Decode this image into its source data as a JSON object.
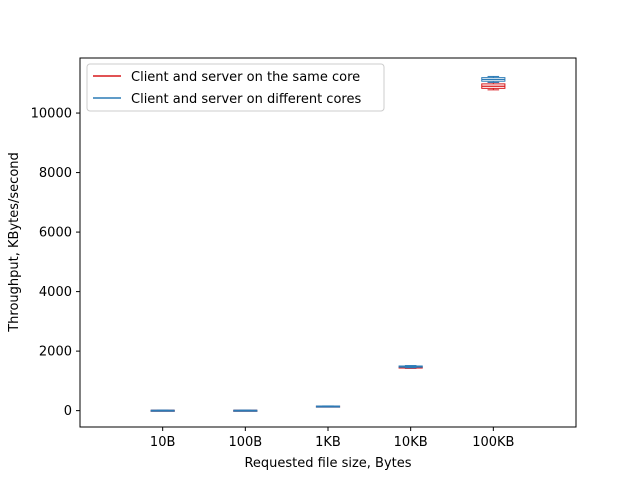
{
  "chart_data": {
    "type": "box",
    "xlabel": "Requested file size, Bytes",
    "ylabel": "Throughput, KBytes/second",
    "categories": [
      "10B",
      "100B",
      "1KB",
      "10KB",
      "100KB"
    ],
    "xlim": [
      -1,
      5
    ],
    "ylim": [
      -550,
      11850
    ],
    "yticks": [
      0,
      2000,
      4000,
      6000,
      8000,
      10000
    ],
    "legend_position": "upper-left",
    "grid": false,
    "series": [
      {
        "name": "Client and server on the same core",
        "color": "#d7191c",
        "boxes": [
          {
            "whislo": 5,
            "q1": 8,
            "med": 10,
            "q3": 12,
            "whishi": 14
          },
          {
            "whislo": 5,
            "q1": 8,
            "med": 10,
            "q3": 12,
            "whishi": 14
          },
          {
            "whislo": 140,
            "q1": 145,
            "med": 148,
            "q3": 151,
            "whishi": 155
          },
          {
            "whislo": 1420,
            "q1": 1435,
            "med": 1450,
            "q3": 1465,
            "whishi": 1480
          },
          {
            "whislo": 10780,
            "q1": 10830,
            "med": 10900,
            "q3": 10980,
            "whishi": 11030
          }
        ]
      },
      {
        "name": "Client and server on different cores",
        "color": "#2c7bb6",
        "boxes": [
          {
            "whislo": 6,
            "q1": 9,
            "med": 11,
            "q3": 13,
            "whishi": 15
          },
          {
            "whislo": 6,
            "q1": 9,
            "med": 11,
            "q3": 13,
            "whishi": 15
          },
          {
            "whislo": 142,
            "q1": 147,
            "med": 150,
            "q3": 153,
            "whishi": 158
          },
          {
            "whislo": 1440,
            "q1": 1460,
            "med": 1480,
            "q3": 1500,
            "whishi": 1515
          },
          {
            "whislo": 11030,
            "q1": 11070,
            "med": 11130,
            "q3": 11190,
            "whishi": 11230
          }
        ]
      }
    ]
  }
}
